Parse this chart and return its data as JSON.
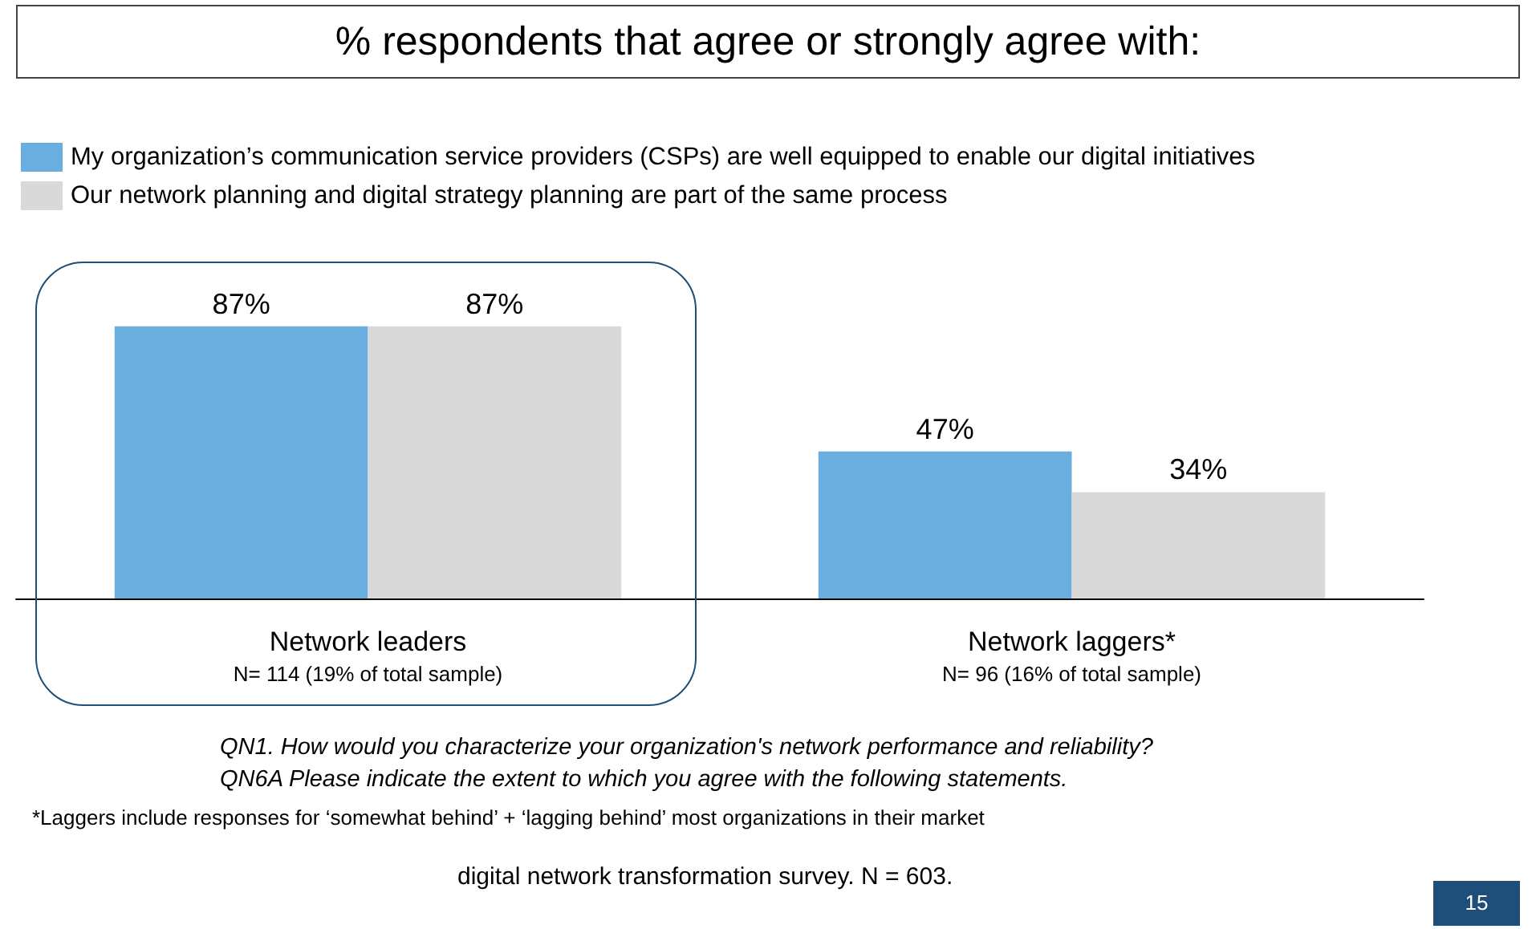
{
  "chart_data": {
    "type": "bar",
    "title": "% respondents that agree or strongly agree with:",
    "categories": [
      "Network leaders\nN= 114 (19% of total sample)",
      "Network laggers*\nN= 96 (16% of total sample)"
    ],
    "series": [
      {
        "name": "My organization’s communication service providers (CSPs) are well equipped to enable our digital initiatives",
        "color": "#6aaee0",
        "values": [
          87,
          47
        ],
        "value_labels": [
          "87%",
          "47%"
        ]
      },
      {
        "name": "Our network planning and digital strategy planning are part of the same process",
        "color": "#d9d9d9",
        "values": [
          87,
          34
        ],
        "value_labels": [
          "87%",
          "34%"
        ]
      }
    ],
    "legend": "top left",
    "annotations": [
      "QN1. How would you characterize your organization's network performance and reliability?",
      "QN6A Please indicate the extent to which you agree with the following statements.",
      "*Laggers include responses for ‘somewhat behind’ + ‘lagging behind’ most organizations in their market",
      "digital network transformation survey. N = 603.",
      "15"
    ]
  }
}
